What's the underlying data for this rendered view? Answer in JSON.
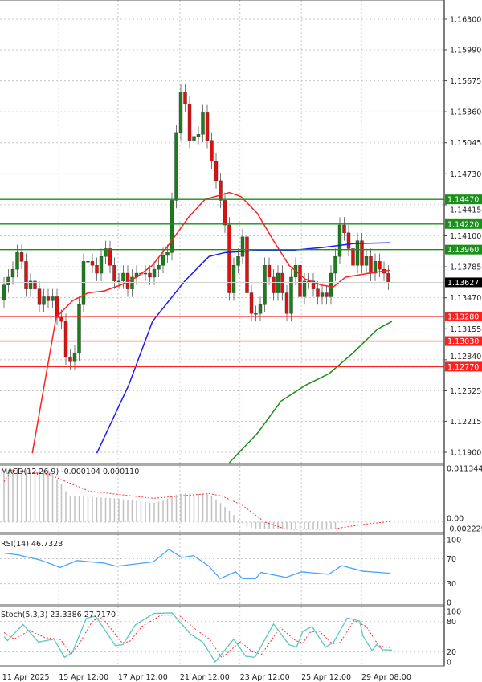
{
  "chart_data": {
    "type": "candlestick",
    "symbol_timeframe": "H4",
    "colors": {
      "bull": "#1a7f1a",
      "bear": "#e01010",
      "ma_fast": "#ff2020",
      "ma_mid": "#1a1aff",
      "ma_slow": "#1a8f1a",
      "grid": "#c8c8c8"
    },
    "price_axis": {
      "ticks": [
        "1.16300",
        "1.15990",
        "1.15675",
        "1.15360",
        "1.15045",
        "1.14730",
        "1.14415",
        "1.14100",
        "1.13785",
        "1.13470",
        "1.13155",
        "1.12840",
        "1.12525",
        "1.12215",
        "1.11900"
      ],
      "range": [
        1.1175,
        1.165
      ]
    },
    "time_labels": [
      {
        "label": "11 Apr 2025",
        "idx": -0.4
      },
      {
        "label": "15 Apr 12:00",
        "idx": 12.4
      },
      {
        "label": "17 Apr 12:00",
        "idx": 25.8
      },
      {
        "label": "21 Apr 12:00",
        "idx": 39.8
      },
      {
        "label": "23 Apr 12:00",
        "idx": 53.4
      },
      {
        "label": "25 Apr 12:00",
        "idx": 67.3
      },
      {
        "label": "29 Apr 08:00",
        "idx": 80.9
      }
    ],
    "first_open": 1.1345,
    "wick_default": 0.0008,
    "closes": [
      1.136,
      1.1368,
      1.1376,
      1.1393,
      1.1384,
      1.1356,
      1.1364,
      1.1356,
      1.134,
      1.1348,
      1.1344,
      1.1348,
      1.1327,
      1.1323,
      1.1287,
      1.1282,
      1.1291,
      1.134,
      1.1384,
      1.1384,
      1.138,
      1.1372,
      1.1389,
      1.1397,
      1.138,
      1.1364,
      1.1364,
      1.1372,
      1.1356,
      1.1368,
      1.1372,
      1.1372,
      1.1372,
      1.1368,
      1.1376,
      1.138,
      1.139,
      1.1393,
      1.1446,
      1.1515,
      1.1556,
      1.1544,
      1.1507,
      1.1511,
      1.1513,
      1.1535,
      1.1507,
      1.1486,
      1.1466,
      1.1446,
      1.1421,
      1.1352,
      1.138,
      1.1389,
      1.1409,
      1.1352,
      1.1331,
      1.1331,
      1.134,
      1.138,
      1.1368,
      1.1352,
      1.1372,
      1.1352,
      1.1331,
      1.1368,
      1.138,
      1.1348,
      1.1364,
      1.1364,
      1.1356,
      1.1348,
      1.1352,
      1.1348,
      1.1372,
      1.1389,
      1.1421,
      1.1413,
      1.1397,
      1.138,
      1.1405,
      1.138,
      1.1389,
      1.1372,
      1.1384,
      1.1376,
      1.1372,
      1.1363
    ],
    "moving_averages": [
      {
        "name": "ma_fast",
        "points": [
          [
            6.4,
            1.1189
          ],
          [
            11.8,
            1.1327
          ],
          [
            15.5,
            1.1344
          ],
          [
            19,
            1.1352
          ],
          [
            22.7,
            1.1354
          ],
          [
            26.4,
            1.136
          ],
          [
            30,
            1.1368
          ],
          [
            33.6,
            1.138
          ],
          [
            37.3,
            1.1401
          ],
          [
            41.8,
            1.1429
          ],
          [
            45.5,
            1.1447
          ],
          [
            51,
            1.1454
          ],
          [
            53.6,
            1.145
          ],
          [
            57.3,
            1.1433
          ],
          [
            61,
            1.1405
          ],
          [
            64.5,
            1.138
          ],
          [
            68.2,
            1.1366
          ],
          [
            71.8,
            1.136
          ],
          [
            74.5,
            1.1358
          ],
          [
            77.3,
            1.1368
          ],
          [
            82.7,
            1.1372
          ],
          [
            87.3,
            1.1375
          ]
        ]
      },
      {
        "name": "ma_mid",
        "points": [
          [
            21,
            1.1189
          ],
          [
            28.2,
            1.1258
          ],
          [
            33.6,
            1.1323
          ],
          [
            40.9,
            1.1364
          ],
          [
            46.4,
            1.1389
          ],
          [
            50,
            1.1393
          ],
          [
            57.3,
            1.1395
          ],
          [
            64.5,
            1.1395
          ],
          [
            71.8,
            1.1398
          ],
          [
            79,
            1.1402
          ],
          [
            87.3,
            1.1403
          ]
        ]
      },
      {
        "name": "ma_slow",
        "points": [
          [
            51,
            1.1178
          ],
          [
            57.3,
            1.1209
          ],
          [
            62.7,
            1.1242
          ],
          [
            68.2,
            1.1258
          ],
          [
            73.6,
            1.127
          ],
          [
            79,
            1.1291
          ],
          [
            84.5,
            1.1315
          ],
          [
            87.8,
            1.1323
          ]
        ]
      }
    ],
    "levels": [
      {
        "price": "1.14470",
        "kind": "resistance",
        "color": "#1a8f1a"
      },
      {
        "price": "1.14220",
        "kind": "resistance",
        "color": "#1a8f1a"
      },
      {
        "price": "1.13960",
        "kind": "resistance",
        "color": "#1a8f1a"
      },
      {
        "price": "1.13280",
        "kind": "support",
        "color": "#ff2020"
      },
      {
        "price": "1.13030",
        "kind": "support",
        "color": "#ff2020"
      },
      {
        "price": "1.12770",
        "kind": "support",
        "color": "#ff2020"
      }
    ],
    "current_price": "1.13627",
    "macd": {
      "title": "MACD(12,26,9) -0.000104 0.000110",
      "axis": [
        "0.011344",
        "0.00",
        "-0.002229"
      ],
      "range": [
        -0.002229,
        0.012
      ],
      "histogram": [
        [
          0,
          0.011
        ],
        [
          10.2,
          0.011
        ],
        [
          12,
          0.009
        ],
        [
          13.5,
          0.0075
        ],
        [
          14.5,
          0.0055
        ],
        [
          25,
          0.005
        ],
        [
          33.8,
          0.004
        ],
        [
          36,
          0.0045
        ],
        [
          39.5,
          0.006
        ],
        [
          46.4,
          0.006
        ],
        [
          49,
          0.004
        ],
        [
          52,
          0.0015
        ],
        [
          53.5,
          0
        ],
        [
          55,
          -0.001
        ],
        [
          58,
          -0.0015
        ],
        [
          74,
          -0.0015
        ],
        [
          75.6,
          -0.001
        ]
      ],
      "signal": [
        [
          0,
          0.0085
        ],
        [
          1.8,
          0.011
        ],
        [
          10.2,
          0.01
        ],
        [
          19.3,
          0.0065
        ],
        [
          33.8,
          0.005
        ],
        [
          46.4,
          0.006
        ],
        [
          49.3,
          0.0055
        ],
        [
          54,
          0.0035
        ],
        [
          59,
          0
        ],
        [
          63.8,
          -0.0015
        ],
        [
          74.2,
          -0.0015
        ],
        [
          81.3,
          -0.0005
        ],
        [
          87.5,
          0.00011
        ]
      ]
    },
    "rsi": {
      "title": "RSI(14) 46.7323",
      "axis": [
        "100",
        "70",
        "30",
        "0"
      ],
      "range": [
        0,
        100
      ],
      "points": [
        [
          0,
          79
        ],
        [
          3.3,
          76
        ],
        [
          8.2,
          68
        ],
        [
          12.7,
          56
        ],
        [
          16.5,
          67
        ],
        [
          22.7,
          63
        ],
        [
          25.5,
          58
        ],
        [
          33.8,
          65
        ],
        [
          37.3,
          85
        ],
        [
          40.2,
          72
        ],
        [
          42.9,
          75
        ],
        [
          46.4,
          58
        ],
        [
          48.9,
          38
        ],
        [
          52.4,
          49
        ],
        [
          54,
          38
        ],
        [
          56.9,
          38
        ],
        [
          58.2,
          48
        ],
        [
          63.8,
          40
        ],
        [
          67.3,
          49
        ],
        [
          73.5,
          45
        ],
        [
          76.4,
          59
        ],
        [
          81.3,
          50
        ],
        [
          87.5,
          46.7
        ]
      ]
    },
    "stoch": {
      "title": "Stoch(5,3,3) 23.3386 27.7170",
      "axis": [
        "100",
        "80",
        "20",
        "0"
      ],
      "range": [
        0,
        100
      ],
      "main": [
        [
          0,
          50
        ],
        [
          0.8,
          42
        ],
        [
          4.3,
          74
        ],
        [
          7.8,
          39
        ],
        [
          11.3,
          45
        ],
        [
          13.7,
          9
        ],
        [
          15.5,
          19
        ],
        [
          18.6,
          86
        ],
        [
          20.7,
          91
        ],
        [
          25.2,
          32
        ],
        [
          26.9,
          34
        ],
        [
          29.7,
          73
        ],
        [
          33.9,
          96
        ],
        [
          38,
          97
        ],
        [
          42.2,
          55
        ],
        [
          45,
          39
        ],
        [
          47.8,
          0
        ],
        [
          52,
          45
        ],
        [
          54.7,
          11
        ],
        [
          56.8,
          9
        ],
        [
          61,
          75
        ],
        [
          64.5,
          34
        ],
        [
          66.2,
          29
        ],
        [
          67.6,
          60
        ],
        [
          69.7,
          70
        ],
        [
          72.8,
          29
        ],
        [
          74.6,
          39
        ],
        [
          77.7,
          87
        ],
        [
          80.5,
          81
        ],
        [
          81.2,
          52
        ],
        [
          83.3,
          22
        ],
        [
          84.3,
          34
        ],
        [
          85.7,
          24
        ],
        [
          87.8,
          23.3
        ]
      ],
      "signal": [
        [
          0,
          58
        ],
        [
          2.3,
          45
        ],
        [
          5.8,
          62
        ],
        [
          9.3,
          48
        ],
        [
          12.8,
          44
        ],
        [
          15.2,
          15
        ],
        [
          17,
          35
        ],
        [
          20.1,
          82
        ],
        [
          22.2,
          88
        ],
        [
          26.7,
          38
        ],
        [
          28.4,
          40
        ],
        [
          31.2,
          70
        ],
        [
          35.4,
          92
        ],
        [
          39.5,
          93
        ],
        [
          43.7,
          62
        ],
        [
          46.5,
          45
        ],
        [
          49.3,
          8
        ],
        [
          53.5,
          40
        ],
        [
          56.2,
          20
        ],
        [
          58.3,
          15
        ],
        [
          62.5,
          68
        ],
        [
          66,
          42
        ],
        [
          67.7,
          37
        ],
        [
          69.1,
          58
        ],
        [
          71.2,
          62
        ],
        [
          74.3,
          36
        ],
        [
          76.1,
          38
        ],
        [
          79.2,
          82
        ],
        [
          82,
          70
        ],
        [
          84.8,
          32
        ],
        [
          85.8,
          30
        ],
        [
          87.8,
          27.7
        ]
      ]
    }
  }
}
